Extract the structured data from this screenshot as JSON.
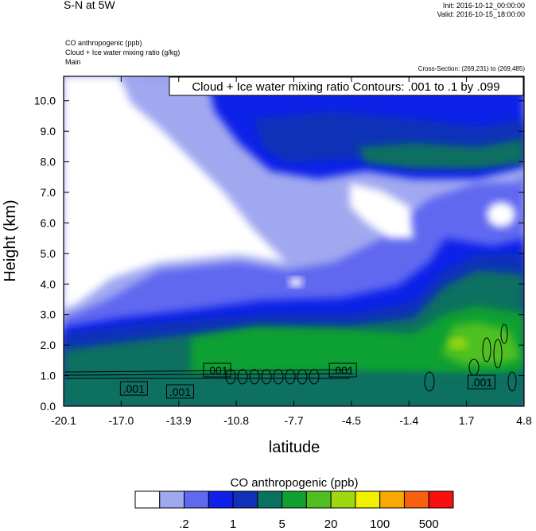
{
  "header": {
    "title": "S-N at 5W",
    "init": "Init: 2016-10-12_00:00:00",
    "valid": "Valid: 2016-10-15_18:00:00",
    "field_line_1": "CO anthropogenic   (ppb)",
    "field_line_2": "Cloud + Ice water mixing ratio   (g/kg)",
    "field_line_3": "Main",
    "cross_section": "Cross-Section: (269,231) to (269,485)"
  },
  "chart_data": {
    "type": "heatmap",
    "title": "",
    "contour_label": "Cloud + Ice water mixing ratio Contours: .001 to .1 by .099",
    "xlabel": "latitude",
    "ylabel": "Height (km)",
    "xlim": [
      -20.1,
      4.8
    ],
    "ylim": [
      0.0,
      10.8
    ],
    "x_ticks": [
      "-20.1",
      "-17.0",
      "-13.9",
      "-10.8",
      "-7.7",
      "-4.5",
      "-1.4",
      "1.7",
      "4.8"
    ],
    "y_ticks": [
      "0.0",
      "1.0",
      "2.0",
      "3.0",
      "4.0",
      "5.0",
      "6.0",
      "7.0",
      "8.0",
      "9.0",
      "10.0"
    ],
    "contour_values": [
      ".001",
      ".001",
      ".001",
      ".001",
      ".001"
    ],
    "colorbar": {
      "label": "CO anthropogenic  (ppb)",
      "colors": [
        "#ffffff",
        "#a0a8f0",
        "#6068f0",
        "#1020e8",
        "#1030b8",
        "#0a7060",
        "#10a030",
        "#50c020",
        "#a0d810",
        "#f0f000",
        "#f8a800",
        "#f86010",
        "#f81010"
      ],
      "tick_labels": [
        ".2",
        "1",
        "5",
        "20",
        "100",
        "500"
      ]
    }
  }
}
